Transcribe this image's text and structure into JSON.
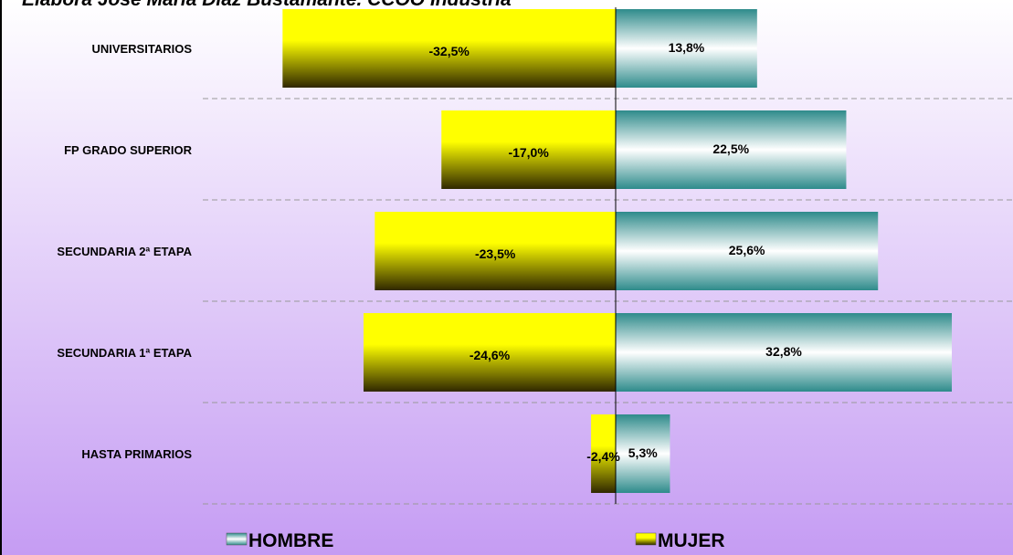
{
  "chart_data": {
    "type": "diverging-bar",
    "title": "Elabora José María Díaz Bustamante. CCOO Industria",
    "categories": [
      "UNIVERSITARIOS",
      "FP GRADO SUPERIOR",
      "SECUNDARIA 2ª ETAPA",
      "SECUNDARIA 1ª ETAPA",
      "HASTA PRIMARIOS"
    ],
    "series": [
      {
        "name": "HOMBRE",
        "color": "#2e8b8b",
        "values": [
          13.8,
          22.5,
          25.6,
          32.8,
          5.3
        ],
        "value_labels": [
          "13,8%",
          "22,5%",
          "25,6%",
          "32,8%",
          "5,3%"
        ]
      },
      {
        "name": "MUJER",
        "color": "#ffff00",
        "values": [
          -32.5,
          -17.0,
          -23.5,
          -24.6,
          -2.4
        ],
        "value_labels": [
          "-32,5%",
          "-17,0%",
          "-23,5%",
          "-24,6%",
          "-2,4%"
        ]
      }
    ],
    "grid": true
  }
}
